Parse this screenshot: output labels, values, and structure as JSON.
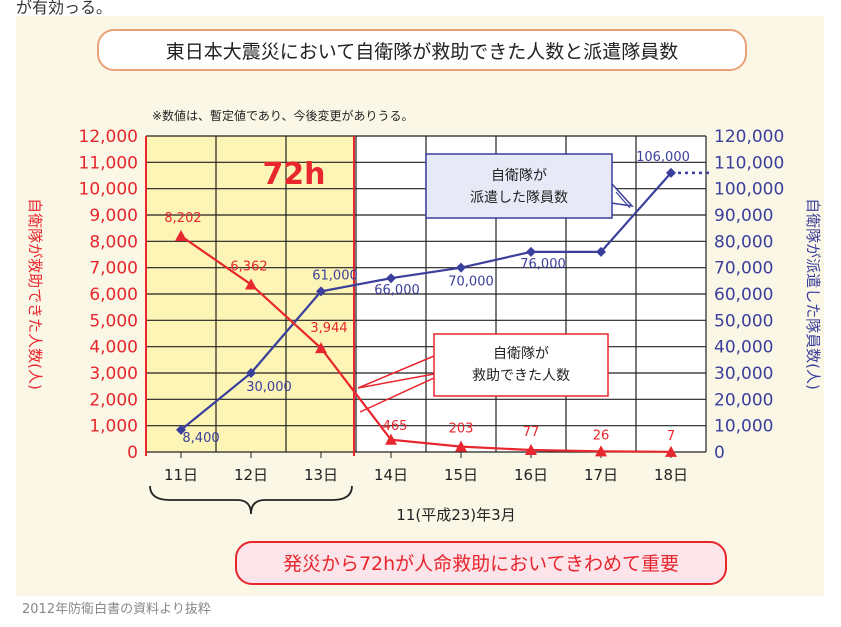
{
  "top_cut_text": "が有効っる。",
  "caption": "2012年防衛白書の資料より抜粋",
  "colors": {
    "rescued": "#e8262d",
    "dispatched": "#3b3f9c",
    "highlight": "#fdf5b5",
    "title_border": "#e8a27a",
    "bottom_banner_bg": "#fbe4ea"
  },
  "chart_data": {
    "type": "line",
    "title": "東日本大震災において自衛隊が救助できた人数と派遣隊員数",
    "note": "※数値は、暫定値であり、今後変更がありうる。",
    "highlight_label": "72h",
    "xlabel": "11(平成23)年3月",
    "categories": [
      "11日",
      "12日",
      "13日",
      "14日",
      "15日",
      "16日",
      "17日",
      "18日"
    ],
    "y_left": {
      "label": "自衛隊が救助できた人数(人)",
      "range": [
        0,
        12000
      ],
      "ticks": [
        "0",
        "1,000",
        "2,000",
        "3,000",
        "4,000",
        "5,000",
        "6,000",
        "7,000",
        "8,000",
        "9,000",
        "10,000",
        "11,000",
        "12,000"
      ]
    },
    "y_right": {
      "label": "自衛隊が派遣した隊員数(人)",
      "range": [
        0,
        120000
      ],
      "ticks": [
        "0",
        "10,000",
        "20,000",
        "30,000",
        "40,000",
        "50,000",
        "60,000",
        "70,000",
        "80,000",
        "90,000",
        "100,000",
        "110,000",
        "120,000"
      ]
    },
    "series": [
      {
        "name": "自衛隊が救助できた人数",
        "axis": "left",
        "values": [
          8202,
          6362,
          3944,
          465,
          203,
          77,
          26,
          7
        ],
        "labels": [
          "8,202",
          "6,362",
          "3,944",
          "465",
          "203",
          "77",
          "26",
          "7"
        ]
      },
      {
        "name": "自衛隊が派遣した隊員数",
        "axis": "right",
        "values": [
          8400,
          30000,
          61000,
          66000,
          70000,
          76000,
          76000,
          106000
        ],
        "labels": [
          "8,400",
          "30,000",
          "61,000",
          "66,000",
          "70,000",
          "76,000",
          "",
          "106,000"
        ]
      }
    ],
    "callouts": {
      "dispatched": [
        "自衛隊が",
        "派遣した隊員数"
      ],
      "rescued": [
        "自衛隊が",
        "救助できた人数"
      ]
    },
    "bottom_banner": "発災から72hが人命救助においてきわめて重要"
  }
}
